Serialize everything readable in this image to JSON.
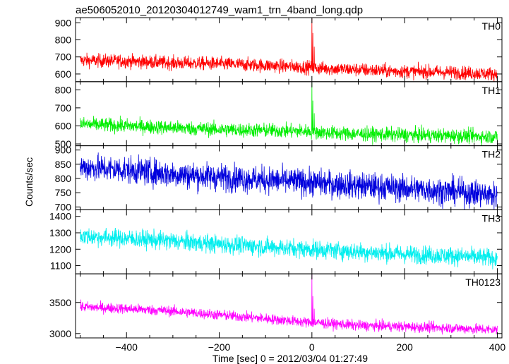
{
  "chart_data": {
    "type": "line",
    "title": "ae506052010_20120304012749_wam1_trn_4band_long.qdp",
    "xlabel": "Time [sec] 0 = 2012/03/04 01:27:49",
    "ylabel": "Counts/sec",
    "xlim": [
      -510,
      410
    ],
    "xticks": [
      -400,
      -200,
      0,
      200,
      400
    ],
    "panels": [
      {
        "name": "TH0",
        "color": "#ff0000",
        "ylim": [
          555,
          930
        ],
        "yticks": [
          600,
          700,
          800,
          900
        ],
        "trend": [
          [
            -500,
            680
          ],
          [
            -400,
            675
          ],
          [
            -300,
            665
          ],
          [
            -200,
            660
          ],
          [
            -100,
            650
          ],
          [
            -10,
            640
          ],
          [
            10,
            635
          ],
          [
            100,
            625
          ],
          [
            200,
            615
          ],
          [
            300,
            610
          ],
          [
            400,
            600
          ]
        ],
        "noise": 20,
        "spikes": [
          [
            0,
            925
          ],
          [
            2,
            840
          ],
          [
            5,
            760
          ]
        ]
      },
      {
        "name": "TH1",
        "color": "#00ee00",
        "ylim": [
          490,
          845
        ],
        "yticks": [
          500,
          600,
          700,
          800
        ],
        "trend": [
          [
            -500,
            610
          ],
          [
            -400,
            600
          ],
          [
            -300,
            590
          ],
          [
            -200,
            580
          ],
          [
            -100,
            575
          ],
          [
            -10,
            570
          ],
          [
            10,
            565
          ],
          [
            100,
            555
          ],
          [
            200,
            550
          ],
          [
            300,
            545
          ],
          [
            400,
            540
          ]
        ],
        "noise": 20,
        "spikes": [
          [
            0,
            840
          ],
          [
            2,
            740
          ],
          [
            5,
            670
          ]
        ]
      },
      {
        "name": "TH2",
        "color": "#0000dd",
        "ylim": [
          690,
          915
        ],
        "yticks": [
          700,
          750,
          800,
          850,
          900
        ],
        "trend": [
          [
            -500,
            840
          ],
          [
            -400,
            830
          ],
          [
            -300,
            815
          ],
          [
            -200,
            805
          ],
          [
            -100,
            795
          ],
          [
            0,
            785
          ],
          [
            100,
            775
          ],
          [
            200,
            765
          ],
          [
            300,
            755
          ],
          [
            400,
            740
          ]
        ],
        "noise": 24,
        "spikes": []
      },
      {
        "name": "TH3",
        "color": "#00eeee",
        "ylim": [
          1050,
          1440
        ],
        "yticks": [
          1100,
          1200,
          1300,
          1400
        ],
        "trend": [
          [
            -500,
            1280
          ],
          [
            -400,
            1265
          ],
          [
            -300,
            1250
          ],
          [
            -200,
            1230
          ],
          [
            -100,
            1215
          ],
          [
            0,
            1200
          ],
          [
            100,
            1185
          ],
          [
            200,
            1170
          ],
          [
            300,
            1160
          ],
          [
            400,
            1145
          ]
        ],
        "noise": 28,
        "spikes": []
      },
      {
        "name": "TH0123",
        "color": "#ff00ff",
        "ylim": [
          2930,
          3960
        ],
        "yticks": [
          3000,
          3500
        ],
        "trend": [
          [
            -500,
            3430
          ],
          [
            -400,
            3400
          ],
          [
            -300,
            3360
          ],
          [
            -200,
            3300
          ],
          [
            -100,
            3240
          ],
          [
            -10,
            3180
          ],
          [
            10,
            3175
          ],
          [
            100,
            3130
          ],
          [
            200,
            3110
          ],
          [
            300,
            3090
          ],
          [
            400,
            3060
          ]
        ],
        "noise": 42,
        "spikes": [
          [
            0,
            3950
          ],
          [
            2,
            3600
          ],
          [
            5,
            3400
          ]
        ]
      }
    ]
  }
}
